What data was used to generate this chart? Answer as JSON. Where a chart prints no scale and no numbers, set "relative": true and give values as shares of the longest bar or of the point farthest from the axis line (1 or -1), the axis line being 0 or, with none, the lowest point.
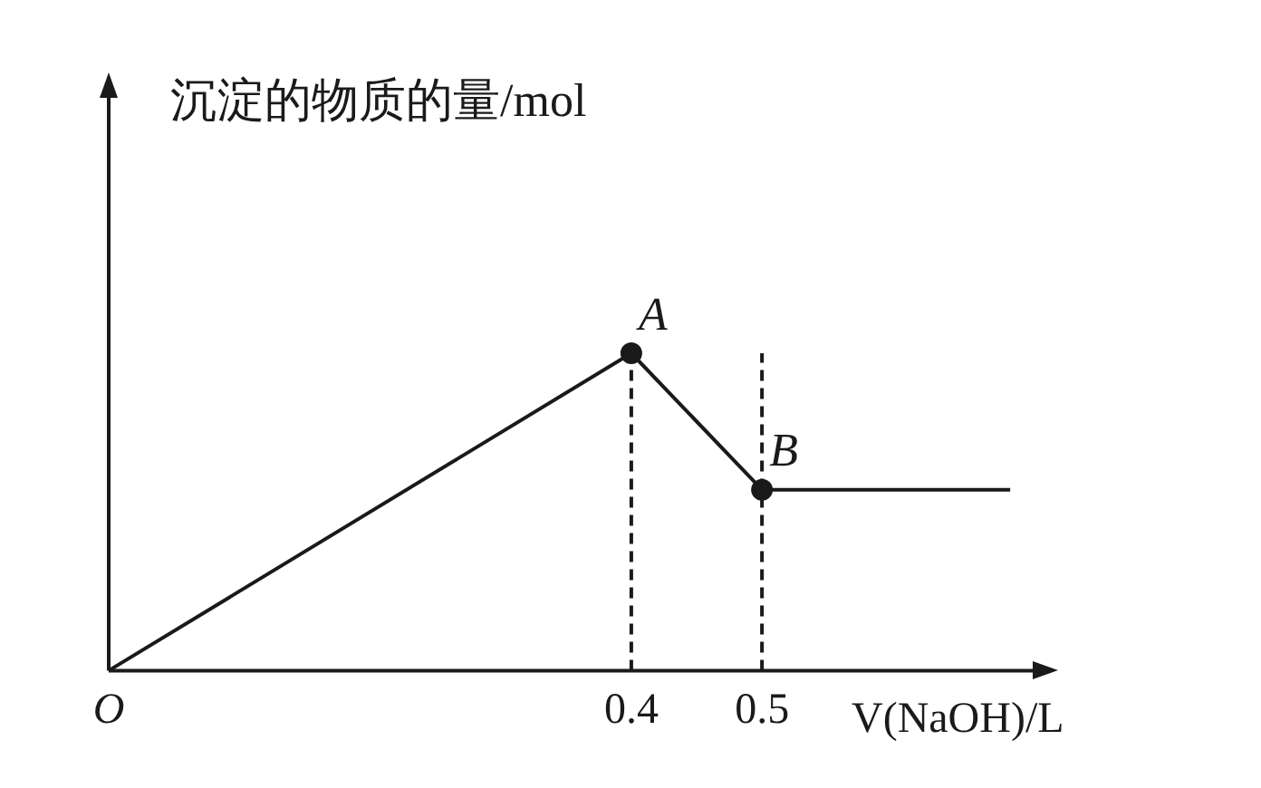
{
  "chart_data": {
    "type": "line",
    "ylabel": "沉淀的物质的量/mol",
    "xlabel": "V(NaOH)/L",
    "relative": true,
    "xlim": [
      0,
      0.71
    ],
    "xticks": [
      {
        "value": 0,
        "label": "O"
      },
      0.4,
      0.5
    ],
    "series": [
      {
        "type": "line",
        "color": "#1a1a1a",
        "x": [
          0,
          0.4,
          0.5,
          0.69
        ],
        "values": [
          0,
          1,
          0.57,
          0.57
        ],
        "marker": "none",
        "line_style": "solid"
      },
      {
        "type": "scatter",
        "color": "#1a1a1a",
        "x": [
          0.4,
          0.5
        ],
        "values": [
          1,
          0.57
        ],
        "marker": "circle"
      }
    ],
    "ref_lines": [
      {
        "axis": "x",
        "value": 0.4,
        "color": "#1a1a1a",
        "line_style": "dashed"
      },
      {
        "axis": "x",
        "value": 0.5,
        "color": "#1a1a1a",
        "line_style": "dashed"
      }
    ],
    "annotations": [
      {
        "text": "A",
        "x": 0.4,
        "y": 1
      },
      {
        "text": "B",
        "x": 0.5,
        "y": 0.57
      }
    ]
  }
}
